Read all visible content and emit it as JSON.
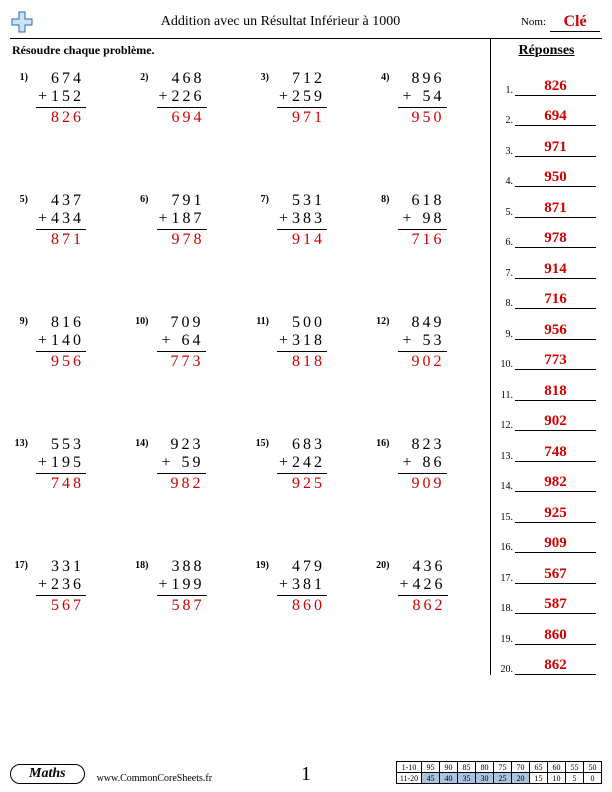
{
  "colors": {
    "answer": "#d00000",
    "rule": "#000000",
    "shade": "#a8c4e0"
  },
  "header": {
    "title": "Addition avec un Résultat Inférieur à 1000",
    "name_label": "Nom:",
    "key_label": "Clé"
  },
  "instruction": "Résoudre chaque problème.",
  "answers_title": "Réponses",
  "problems": [
    {
      "n": "1)",
      "a": "674",
      "b": "152",
      "sum": "826"
    },
    {
      "n": "2)",
      "a": "468",
      "b": "226",
      "sum": "694"
    },
    {
      "n": "3)",
      "a": "712",
      "b": "259",
      "sum": "971"
    },
    {
      "n": "4)",
      "a": "896",
      "b": "54",
      "sum": "950"
    },
    {
      "n": "5)",
      "a": "437",
      "b": "434",
      "sum": "871"
    },
    {
      "n": "6)",
      "a": "791",
      "b": "187",
      "sum": "978"
    },
    {
      "n": "7)",
      "a": "531",
      "b": "383",
      "sum": "914"
    },
    {
      "n": "8)",
      "a": "618",
      "b": "98",
      "sum": "716"
    },
    {
      "n": "9)",
      "a": "816",
      "b": "140",
      "sum": "956"
    },
    {
      "n": "10)",
      "a": "709",
      "b": "64",
      "sum": "773"
    },
    {
      "n": "11)",
      "a": "500",
      "b": "318",
      "sum": "818"
    },
    {
      "n": "12)",
      "a": "849",
      "b": "53",
      "sum": "902"
    },
    {
      "n": "13)",
      "a": "553",
      "b": "195",
      "sum": "748"
    },
    {
      "n": "14)",
      "a": "923",
      "b": "59",
      "sum": "982"
    },
    {
      "n": "15)",
      "a": "683",
      "b": "242",
      "sum": "925"
    },
    {
      "n": "16)",
      "a": "823",
      "b": "86",
      "sum": "909"
    },
    {
      "n": "17)",
      "a": "331",
      "b": "236",
      "sum": "567"
    },
    {
      "n": "18)",
      "a": "388",
      "b": "199",
      "sum": "587"
    },
    {
      "n": "19)",
      "a": "479",
      "b": "381",
      "sum": "860"
    },
    {
      "n": "20)",
      "a": "436",
      "b": "426",
      "sum": "862"
    }
  ],
  "footer": {
    "subject": "Maths",
    "site": "www.CommonCoreSheets.fr",
    "page_number": "1",
    "score_rows": {
      "r1_label": "1-10",
      "r1": [
        "95",
        "90",
        "85",
        "80",
        "75",
        "70",
        "65",
        "60",
        "55",
        "50"
      ],
      "r2_label": "11-20",
      "r2": [
        "45",
        "40",
        "35",
        "30",
        "25",
        "20",
        "15",
        "10",
        "5",
        "0"
      ]
    }
  }
}
